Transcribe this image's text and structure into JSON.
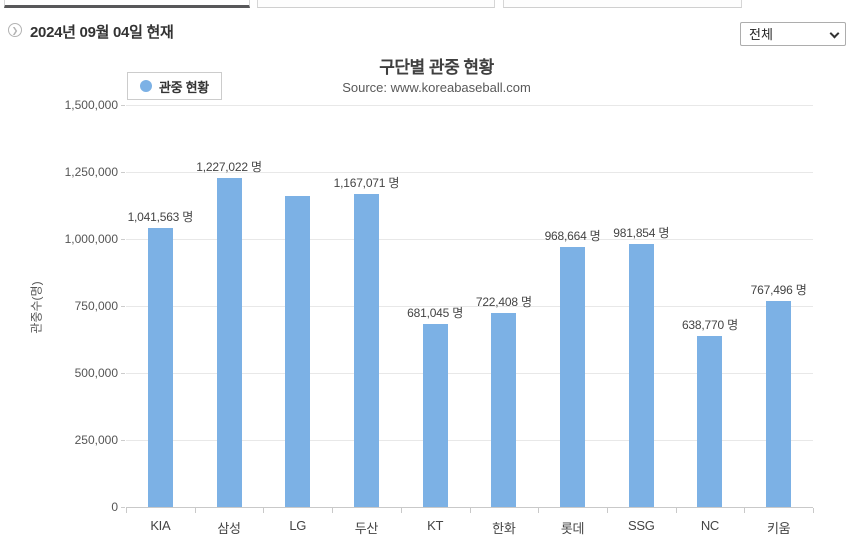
{
  "header": {
    "date_label": "2024년 09월 04일 현재"
  },
  "filter": {
    "selected": "전체"
  },
  "chart_data": {
    "type": "bar",
    "title": "구단별 관중 현황",
    "subtitle": "Source: www.koreabaseball.com",
    "legend": [
      {
        "label": "관중 현황",
        "color": "#7cb1e5",
        "position": "top-left"
      }
    ],
    "categories": [
      "KIA",
      "삼성",
      "LG",
      "두산",
      "KT",
      "한화",
      "롯데",
      "SSG",
      "NC",
      "키움"
    ],
    "values": [
      1041563,
      1227022,
      1160000,
      1167071,
      681045,
      722408,
      968664,
      981854,
      638770,
      767496
    ],
    "bar_labels": [
      "1,041,563 명",
      "1,227,022 명",
      "",
      "1,167,071 명",
      "681,045 명",
      "722,408 명",
      "968,664 명",
      "981,854 명",
      "638,770 명",
      "767,496 명"
    ],
    "xlabel": "",
    "ylabel": "관중수(명)",
    "ylim": [
      0,
      1500000
    ],
    "ytick_interval": 250000,
    "yticks": [
      "0",
      "250,000",
      "500,000",
      "750,000",
      "1,000,000",
      "1,250,000",
      "1,500,000"
    ],
    "grid": true,
    "bar_color": "#7cb1e5"
  },
  "colors": {
    "accent_bar": "#7cb1e5",
    "active_tab_border": "#58585a",
    "gridline": "#e8e8e8",
    "axis_line": "#c9c9c9",
    "text_dark": "#333333",
    "text_muted": "#555555"
  }
}
